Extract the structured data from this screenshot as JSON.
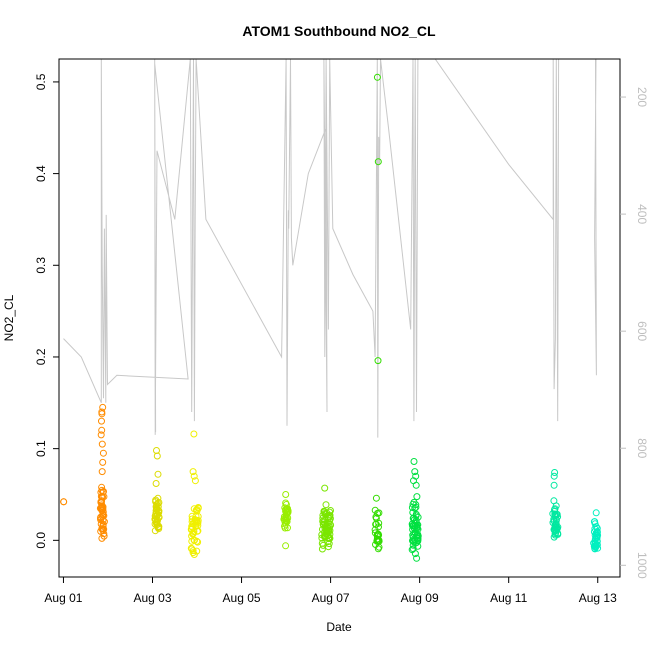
{
  "chart_data": {
    "type": "scatter",
    "title": "ATOM1 Southbound NO2_CL",
    "xlabel": "Date",
    "ylabel": "NO2_CL",
    "x_ticks": [
      "Aug 01",
      "Aug 03",
      "Aug 05",
      "Aug 07",
      "Aug 09",
      "Aug 11",
      "Aug 13"
    ],
    "x_tick_days": [
      1,
      3,
      5,
      7,
      9,
      11,
      13
    ],
    "xlim_days": [
      0.9,
      13.5
    ],
    "y_ticks": [
      0.0,
      0.1,
      0.2,
      0.3,
      0.4,
      0.5
    ],
    "y_tick_labels": [
      "0.0",
      "0.1",
      "0.2",
      "0.3",
      "0.4",
      "0.5"
    ],
    "ylim": [
      -0.04,
      0.525
    ],
    "right_axis": {
      "ticks": [
        200,
        400,
        600,
        800,
        1000
      ],
      "tick_labels": [
        "200",
        "400",
        "600",
        "800",
        "1000"
      ],
      "lim_top_bottom": [
        135,
        1020
      ],
      "inverted": true,
      "color": "#bebebe"
    },
    "grid": false,
    "legend": "none",
    "clusters": [
      {
        "center": 1.0,
        "spread": 0.01,
        "n": 1,
        "color": "#ff8c00",
        "ymin": 0.042,
        "ymax": 0.042,
        "extra": [
          0.042
        ]
      },
      {
        "center": 1.87,
        "spread": 0.05,
        "n": 45,
        "color": "#ff8c00",
        "ymin": -0.006,
        "ymax": 0.065,
        "extra": [
          0.145,
          0.14,
          0.138,
          0.13,
          0.12,
          0.115,
          0.105,
          0.095,
          0.085,
          0.075
        ]
      },
      {
        "center": 3.1,
        "spread": 0.05,
        "n": 40,
        "color": "#dcdc00",
        "ymin": 0.005,
        "ymax": 0.05,
        "extra": [
          0.098,
          0.092,
          0.072,
          0.062
        ]
      },
      {
        "center": 3.95,
        "spread": 0.08,
        "n": 45,
        "color": "#f0f000",
        "ymin": -0.02,
        "ymax": 0.05,
        "extra": [
          0.116,
          0.075,
          0.07,
          0.065
        ]
      },
      {
        "center": 6.0,
        "spread": 0.05,
        "n": 30,
        "color": "#99ee00",
        "ymin": 0.01,
        "ymax": 0.045,
        "extra": [
          0.05,
          -0.006
        ]
      },
      {
        "center": 6.9,
        "spread": 0.1,
        "n": 60,
        "color": "#7ae600",
        "ymin": -0.015,
        "ymax": 0.04,
        "extra": [
          0.057
        ]
      },
      {
        "center": 8.05,
        "spread": 0.05,
        "n": 25,
        "color": "#33dd00",
        "ymin": -0.015,
        "ymax": 0.04,
        "extra": [
          0.505,
          0.413,
          0.196,
          0.046
        ]
      },
      {
        "center": 8.9,
        "spread": 0.07,
        "n": 55,
        "color": "#00e040",
        "ymin": -0.02,
        "ymax": 0.05,
        "extra": [
          0.086,
          0.075,
          0.07,
          0.065,
          0.06
        ]
      },
      {
        "center": 12.05,
        "spread": 0.06,
        "n": 35,
        "color": "#00e8a0",
        "ymin": -0.008,
        "ymax": 0.045,
        "extra": [
          0.074,
          0.07,
          0.06
        ]
      },
      {
        "center": 12.95,
        "spread": 0.05,
        "n": 35,
        "color": "#00f0c0",
        "ymin": -0.015,
        "ymax": 0.022,
        "extra": [
          0.03
        ]
      }
    ],
    "grey_series": {
      "color": "#c8c8c8",
      "points": [
        [
          1.0,
          0.22
        ],
        [
          1.4,
          0.2
        ],
        [
          1.85,
          0.15
        ],
        [
          1.85,
          0.525
        ],
        [
          1.87,
          0.3
        ],
        [
          1.9,
          0.155
        ],
        [
          1.92,
          0.34
        ],
        [
          1.95,
          0.15
        ],
        [
          1.96,
          0.355
        ],
        [
          1.98,
          0.22
        ],
        [
          1.99,
          0.17
        ],
        [
          2.2,
          0.18
        ],
        [
          3.8,
          0.176
        ],
        [
          3.05,
          0.52
        ],
        [
          3.07,
          0.118
        ],
        [
          3.05,
          0.525
        ],
        [
          3.06,
          0.115
        ],
        [
          3.1,
          0.425
        ],
        [
          3.5,
          0.35
        ],
        [
          3.85,
          0.525
        ],
        [
          3.88,
          0.14
        ],
        [
          3.9,
          0.35
        ],
        [
          3.92,
          0.525
        ],
        [
          3.94,
          0.13
        ],
        [
          3.96,
          0.35
        ],
        [
          3.98,
          0.525
        ],
        [
          4.2,
          0.35
        ],
        [
          5.9,
          0.2
        ],
        [
          6.0,
          0.525
        ],
        [
          6.02,
          0.125
        ],
        [
          6.05,
          0.36
        ],
        [
          6.06,
          0.34
        ],
        [
          6.1,
          0.525
        ],
        [
          6.12,
          0.33
        ],
        [
          6.15,
          0.3
        ],
        [
          6.5,
          0.4
        ],
        [
          6.9,
          0.45
        ],
        [
          6.92,
          0.14
        ],
        [
          6.85,
          0.525
        ],
        [
          6.87,
          0.2
        ],
        [
          6.9,
          0.525
        ],
        [
          6.95,
          0.23
        ],
        [
          6.98,
          0.525
        ],
        [
          7.05,
          0.34
        ],
        [
          7.5,
          0.29
        ],
        [
          7.95,
          0.25
        ],
        [
          8.0,
          0.2
        ],
        [
          8.05,
          0.525
        ],
        [
          8.06,
          0.112
        ],
        [
          8.08,
          0.44
        ],
        [
          8.1,
          0.41
        ],
        [
          8.12,
          0.525
        ],
        [
          8.3,
          0.45
        ],
        [
          8.8,
          0.23
        ],
        [
          8.85,
          0.525
        ],
        [
          8.87,
          0.13
        ],
        [
          8.9,
          0.525
        ],
        [
          8.93,
          0.14
        ],
        [
          8.96,
          0.525
        ],
        [
          9.35,
          0.525
        ],
        [
          11.0,
          0.41
        ],
        [
          12.0,
          0.35
        ],
        [
          12.0,
          0.525
        ],
        [
          12.02,
          0.165
        ],
        [
          12.05,
          0.22
        ],
        [
          12.07,
          0.525
        ],
        [
          12.1,
          0.13
        ],
        [
          12.12,
          0.525
        ],
        [
          12.95,
          0.525
        ],
        [
          12.97,
          0.18
        ],
        [
          12.93,
          0.33
        ],
        [
          12.96,
          0.525
        ]
      ]
    }
  }
}
